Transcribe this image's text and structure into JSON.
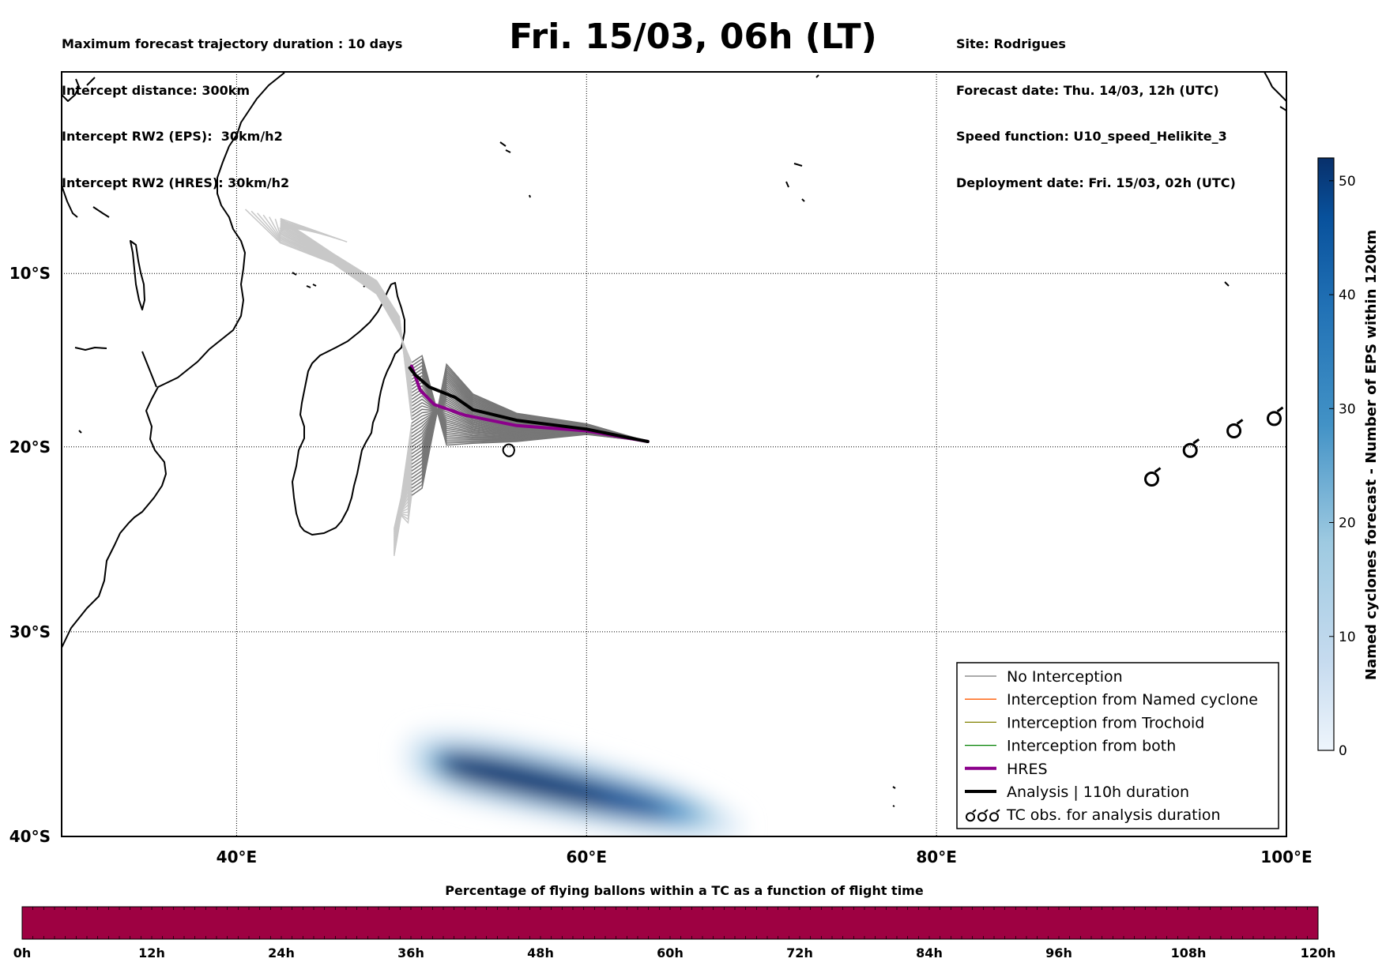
{
  "title": "Fri. 15/03, 06h (LT)",
  "info_left": [
    "Maximum forecast trajectory duration : 10 days",
    "Intercept distance: 300km",
    "Intercept RW2 (EPS):  30km/h2",
    "Intercept RW2 (HRES): 30km/h2"
  ],
  "info_right": [
    "Site: Rodrigues",
    "Forecast date: Thu. 14/03, 12h (UTC)",
    "Speed function: U10_speed_Helikite_3",
    "Deployment date: Fri. 15/03, 02h (UTC)"
  ],
  "map": {
    "lon_range": [
      30,
      100
    ],
    "lat_range": [
      -40,
      2
    ],
    "lon_ticks": [
      {
        "value": 40,
        "label": "40°E"
      },
      {
        "value": 60,
        "label": "60°E"
      },
      {
        "value": 80,
        "label": "80°E"
      },
      {
        "value": 100,
        "label": "100°E"
      }
    ],
    "lat_ticks": [
      {
        "value": -10,
        "label": "10°S"
      },
      {
        "value": -20,
        "label": "20°S"
      },
      {
        "value": -30,
        "label": "30°S"
      },
      {
        "value": -40,
        "label": "40°S"
      }
    ],
    "grid": true,
    "colors": {
      "no_interception": "#777777",
      "named_cyclone": "#ff5a00",
      "trochoid": "#808000",
      "both": "#008000",
      "hres": "#8b008b",
      "analysis": "#000000",
      "ensemble_faded": "#c8c8c8"
    }
  },
  "legend": {
    "position": "bottom-right",
    "entries": [
      {
        "label": "No Interception",
        "style": "no_interception"
      },
      {
        "label": "Interception from Named cyclone",
        "style": "named_cyclone"
      },
      {
        "label": "Interception from Trochoid",
        "style": "trochoid"
      },
      {
        "label": "Interception from both",
        "style": "both"
      },
      {
        "label": "HRES",
        "style": "hres"
      },
      {
        "label": "Analysis | 110h duration",
        "style": "analysis"
      },
      {
        "label": "TC obs. for analysis duration",
        "style": "tc_obs",
        "icon": "cyclone-symbol-icon"
      }
    ]
  },
  "colorbar": {
    "label": "Named cyclones forecast - Number of EPS within 120km",
    "min": 0,
    "max": 52,
    "ticks": [
      0,
      10,
      20,
      30,
      40,
      50
    ],
    "colormap": [
      "#eef5fc",
      "#c6dbef",
      "#9ecae1",
      "#6baed6",
      "#3182bd",
      "#08519c",
      "#08306b"
    ]
  },
  "flight_bar": {
    "title": "Percentage of flying ballons within a TC as a function of flight time",
    "color": "#9e0142",
    "percent": 100,
    "ticks": [
      "0h",
      "12h",
      "24h",
      "36h",
      "48h",
      "60h",
      "72h",
      "84h",
      "96h",
      "108h",
      "120h"
    ]
  },
  "tracks": {
    "release_point": [
      63.5,
      -19.7
    ],
    "analysis": [
      [
        63.5,
        -19.7
      ],
      [
        60,
        -19.0
      ],
      [
        56,
        -18.5
      ],
      [
        53.5,
        -17.9
      ],
      [
        52.5,
        -17.2
      ],
      [
        51.0,
        -16.6
      ],
      [
        50.2,
        -15.9
      ],
      [
        49.9,
        -15.5
      ]
    ],
    "hres": [
      [
        63.5,
        -19.7
      ],
      [
        60,
        -19.1
      ],
      [
        56,
        -18.8
      ],
      [
        53,
        -18.2
      ],
      [
        51.3,
        -17.6
      ],
      [
        50.5,
        -16.8
      ],
      [
        50.0,
        -15.4
      ]
    ],
    "tc_obs": [
      [
        99.3,
        -18.4
      ],
      [
        97.0,
        -19.1
      ],
      [
        94.5,
        -20.2
      ],
      [
        92.3,
        -21.8
      ]
    ],
    "density_blob": {
      "start": [
        52.5,
        -37.0
      ],
      "end": [
        64.5,
        -39.0
      ],
      "max_count": 52
    }
  }
}
